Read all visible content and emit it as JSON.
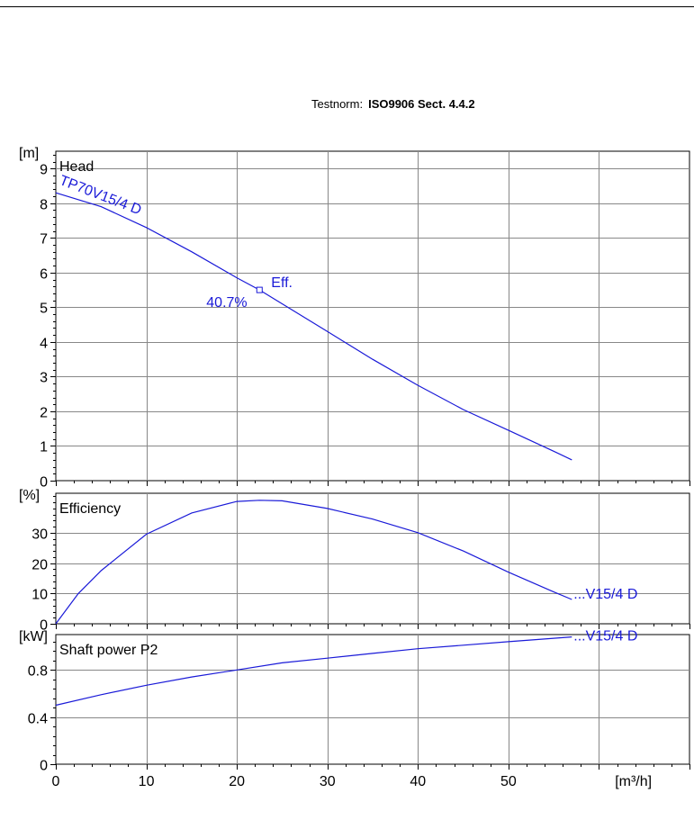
{
  "header": {
    "testnorm_label": "Testnorm:",
    "testnorm_value": "ISO9906 Sect. 4.4.2"
  },
  "colors": {
    "curve": "#1a1ad8",
    "grid": "#888888",
    "axis": "#000000"
  },
  "chart_data": [
    {
      "type": "line",
      "title": "Head",
      "ylabel": "[m]",
      "xlim": [
        0,
        70
      ],
      "ylim": [
        0,
        9.5
      ],
      "y_ticks": [
        0,
        1,
        2,
        3,
        4,
        5,
        6,
        7,
        8,
        9
      ],
      "grid": true,
      "series": [
        {
          "name": "TP70V15/4 D",
          "x": [
            0,
            5,
            10,
            15,
            20,
            22.5,
            25,
            30,
            35,
            40,
            45,
            50,
            55,
            57
          ],
          "y": [
            8.3,
            7.9,
            7.3,
            6.6,
            5.85,
            5.5,
            5.1,
            4.3,
            3.5,
            2.75,
            2.05,
            1.45,
            0.85,
            0.6
          ]
        }
      ],
      "annotations": [
        {
          "label": "Eff.",
          "value": "40.7%",
          "x": 22.5,
          "y": 5.5
        }
      ]
    },
    {
      "type": "line",
      "title": "Efficiency",
      "ylabel": "[%]",
      "xlim": [
        0,
        70
      ],
      "ylim": [
        0,
        43
      ],
      "y_ticks": [
        0,
        10,
        20,
        30
      ],
      "grid": true,
      "series": [
        {
          "name": "...V15/4 D",
          "x": [
            0,
            2.5,
            5,
            10,
            15,
            20,
            22.5,
            25,
            30,
            35,
            40,
            45,
            50,
            55,
            57
          ],
          "y": [
            0,
            10,
            17.5,
            29.5,
            36.5,
            40.3,
            40.7,
            40.5,
            38,
            34.5,
            30,
            24,
            17,
            10.5,
            8
          ]
        }
      ]
    },
    {
      "type": "line",
      "title": "Shaft power P2",
      "ylabel": "[kW]",
      "xlabel": "[m³/h]",
      "xlim": [
        0,
        70
      ],
      "ylim": [
        0,
        1.1
      ],
      "x_ticks": [
        0,
        10,
        20,
        30,
        40,
        50
      ],
      "y_ticks": [
        0,
        0.4,
        0.8
      ],
      "grid": true,
      "series": [
        {
          "name": "...V15/4 D",
          "x": [
            0,
            5,
            10,
            15,
            20,
            25,
            30,
            35,
            40,
            45,
            50,
            57
          ],
          "y": [
            0.5,
            0.59,
            0.67,
            0.74,
            0.8,
            0.86,
            0.9,
            0.94,
            0.98,
            1.01,
            1.04,
            1.08
          ]
        }
      ]
    }
  ]
}
